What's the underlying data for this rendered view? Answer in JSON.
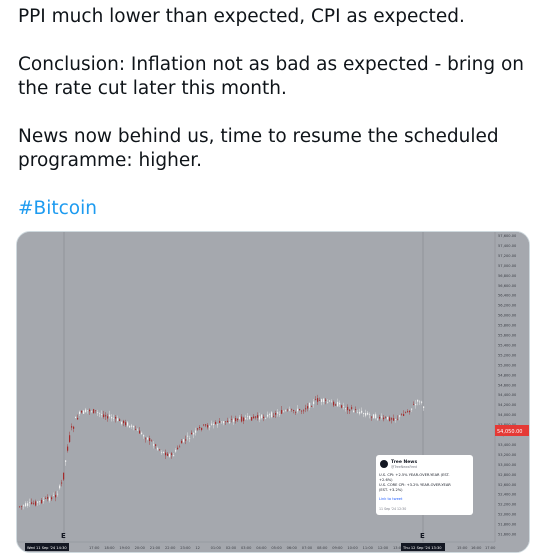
{
  "tweet": {
    "line1": "PPI much lower than expected, CPI as expected.",
    "line2a": "Conclusion: Inflation not as bad as expected - bring on",
    "line2b": "the rate cut later this month.",
    "line3a": "News now behind us, time to resume the scheduled",
    "line3b": "programme: higher.",
    "hashtag": "#Bitcoin"
  },
  "chart": {
    "price_labels": [
      "57,600.00",
      "57,400.00",
      "57,200.00",
      "57,000.00",
      "56,800.00",
      "56,600.00",
      "56,400.00",
      "56,200.00",
      "56,000.00",
      "55,800.00",
      "55,600.00",
      "55,400.00",
      "55,200.00",
      "55,000.00",
      "54,800.00",
      "54,600.00",
      "54,400.00",
      "54,200.00",
      "54,000.00",
      "53,800.00",
      "53,600.00",
      "53,400.00",
      "53,200.00",
      "53,000.00",
      "52,800.00",
      "52,600.00",
      "52,400.00",
      "52,200.00",
      "52,000.00",
      "51,800.00",
      "51,600.00"
    ],
    "current_price": "54,050.00",
    "time_labels": [
      "Wed 11 Sep '24  14:30",
      "17:00",
      "18:00",
      "19:00",
      "20:00",
      "21:00",
      "22:00",
      "23:00",
      "12",
      "01:00",
      "02:00",
      "03:00",
      "04:00",
      "05:00",
      "06:00",
      "07:00",
      "08:00",
      "09:00",
      "10:00",
      "11:00",
      "12:00",
      "13:00",
      "Thu 12 Sep '24  13:30",
      "15:00",
      "16:00",
      "17:00"
    ],
    "marker_label": "E",
    "news": {
      "source": "Tree News",
      "handle": "@TreeNewsFeed",
      "line1": "U.S. CPI: +2.5% YEAR-OVER-YEAR (EST.",
      "line2": "+2.6%)",
      "line3": "U.S. CORE CPI: +3.2% YEAR-OVER-YEAR",
      "line4": "(EST. +3.2%)",
      "link": "Link to tweet",
      "time": "11 Sep '24  12:30"
    },
    "colors": {
      "background": "#a5a8ae",
      "up": "#f2f2f2",
      "down": "#a52a2a",
      "axis": "#7f8288",
      "price_tag": "#e53935",
      "time_tag": "#131722"
    }
  }
}
